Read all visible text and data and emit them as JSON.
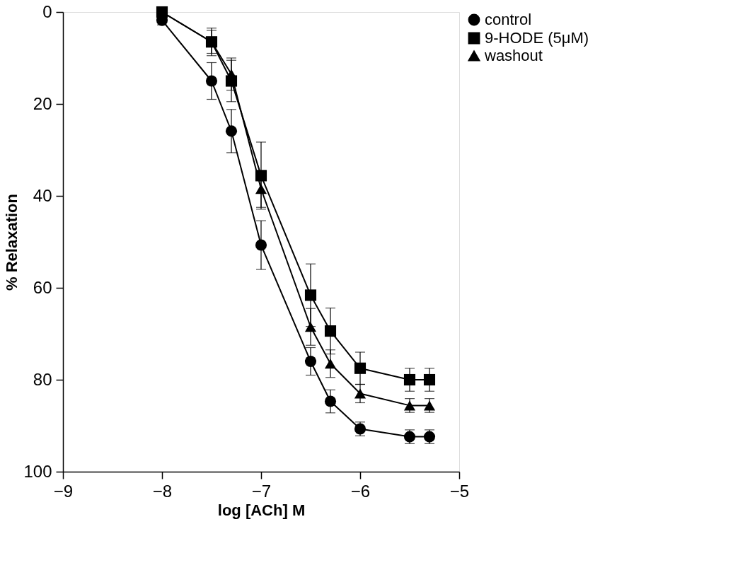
{
  "chart_data": {
    "type": "line",
    "xlabel": "log [ACh] M",
    "ylabel": "% Relaxation",
    "x": [
      -8,
      -7.5,
      -7.3,
      -7,
      -6.5,
      -6.3,
      -6,
      -5.5,
      -5.3
    ],
    "xlim": [
      -9,
      -5
    ],
    "xticks": [
      -9,
      -8,
      -7,
      -6,
      -5
    ],
    "ylim": [
      100,
      0
    ],
    "yticks": [
      0,
      20,
      40,
      60,
      80,
      100
    ],
    "grid": false,
    "legend": "right",
    "line_style": "solid",
    "series": [
      {
        "name": "control",
        "color": "#000000",
        "marker": "circle",
        "values": [
          1.8,
          15,
          25.9,
          50.7,
          76,
          84.7,
          90.7,
          92.4,
          92.4
        ],
        "errors": [
          1,
          4,
          4.7,
          5.3,
          3,
          2.5,
          1.5,
          1.5,
          1.5
        ]
      },
      {
        "name": "9-HODE (5μM)",
        "color": "#000000",
        "marker": "square",
        "values": [
          0,
          6.5,
          15,
          35.6,
          61.6,
          69.4,
          77.5,
          80,
          80
        ],
        "errors": [
          1,
          3,
          4.5,
          7.3,
          6.8,
          5,
          3.5,
          2.5,
          2.5
        ]
      },
      {
        "name": "washout",
        "color": "#000000",
        "marker": "triangle",
        "values": [
          0,
          6.5,
          13.5,
          38.5,
          68.5,
          76.5,
          83,
          85.6,
          85.6
        ],
        "errors": [
          1,
          2.5,
          3.5,
          4,
          4,
          3,
          2,
          1.5,
          1.5
        ]
      }
    ]
  }
}
